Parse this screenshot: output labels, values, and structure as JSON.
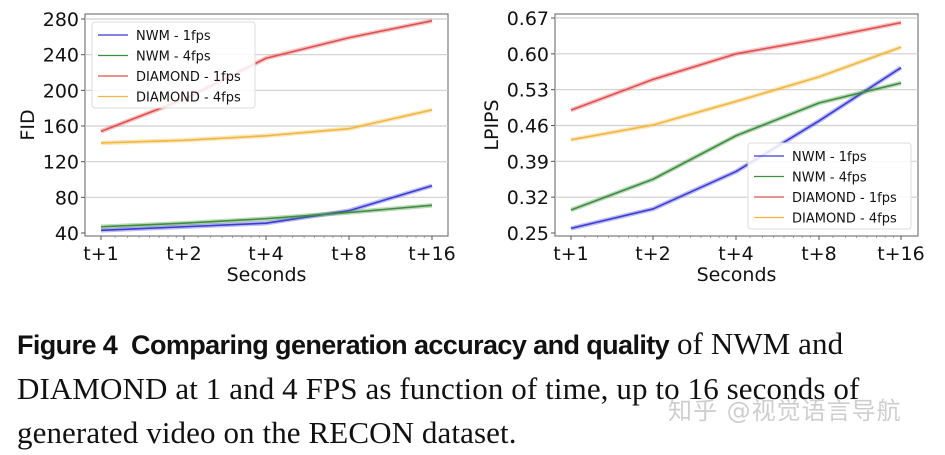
{
  "chart_data": [
    {
      "type": "line",
      "title": "",
      "xlabel": "Seconds",
      "ylabel": "FID",
      "categories": [
        "t+1",
        "t+2",
        "t+4",
        "t+8",
        "t+16"
      ],
      "yticks": [
        40,
        80,
        120,
        160,
        200,
        240,
        280
      ],
      "ylim": [
        40,
        280
      ],
      "grid": "horizontal",
      "legend_position": "upper left",
      "series": [
        {
          "name": "NWM - 1fps",
          "color": "#3b3bd6",
          "values": [
            43,
            47,
            51,
            65,
            93
          ]
        },
        {
          "name": "NWM - 4fps",
          "color": "#3e8e3e",
          "values": [
            47,
            51,
            56,
            63,
            71
          ]
        },
        {
          "name": "DIAMOND - 1fps",
          "color": "#e05050",
          "values": [
            154,
            190,
            236,
            259,
            278
          ]
        },
        {
          "name": "DIAMOND - 4fps",
          "color": "#f0b840",
          "values": [
            141,
            144,
            149,
            157,
            178
          ]
        }
      ]
    },
    {
      "type": "line",
      "title": "",
      "xlabel": "Seconds",
      "ylabel": "LPIPS",
      "categories": [
        "t+1",
        "t+2",
        "t+4",
        "t+8",
        "t+16"
      ],
      "yticks": [
        0.25,
        0.32,
        0.39,
        0.46,
        0.53,
        0.6,
        0.67
      ],
      "ytick_labels": [
        "0.25",
        "0.32",
        "0.39",
        "0.46",
        "0.53",
        "0.60",
        "0.67"
      ],
      "ylim": [
        0.25,
        0.67
      ],
      "grid": "horizontal",
      "legend_position": "lower right",
      "series": [
        {
          "name": "NWM - 1fps",
          "color": "#3b3bd6",
          "values": [
            0.259,
            0.297,
            0.37,
            0.469,
            0.573
          ]
        },
        {
          "name": "NWM - 4fps",
          "color": "#3e8e3e",
          "values": [
            0.295,
            0.355,
            0.44,
            0.504,
            0.543
          ]
        },
        {
          "name": "DIAMOND - 1fps",
          "color": "#e05050",
          "values": [
            0.49,
            0.55,
            0.6,
            0.629,
            0.661
          ]
        },
        {
          "name": "DIAMOND - 4fps",
          "color": "#f0b840",
          "values": [
            0.432,
            0.461,
            0.507,
            0.555,
            0.613
          ]
        }
      ]
    }
  ],
  "caption": {
    "label": "Figure 4",
    "bold_title": "Comparing generation accuracy and quality",
    "text": "of NWM and DIAMOND at 1 and 4 FPS as function of time, up to 16 seconds of generated video on the RECON dataset."
  },
  "watermark": "知乎 @视觉语言导航"
}
